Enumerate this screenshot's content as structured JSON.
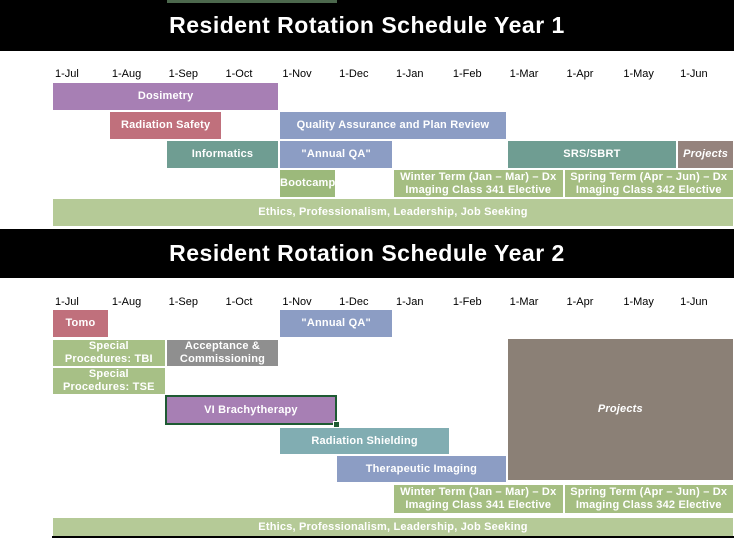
{
  "page_background": "#FFFFFF",
  "header_bar_color": "#000000",
  "header_text_color": "#FFFFFF",
  "top_edge_artifact_color": "#4C684D",
  "chart_data": [
    {
      "type": "bar",
      "subtype": "gantt",
      "title": "Resident Rotation Schedule Year 1",
      "x_ticks": [
        "1-Jul",
        "1-Aug",
        "1-Sep",
        "1-Oct",
        "1-Nov",
        "1-Dec",
        "1-Jan",
        "1-Feb",
        "1-Mar",
        "1-Apr",
        "1-May",
        "1-Jun"
      ],
      "tasks": [
        {
          "id": "dosimetry",
          "label": "Dosimetry",
          "start_month": "1-Jul",
          "end_month": "1-Nov",
          "start": 0,
          "end": 4,
          "row": 0,
          "color": "#A77FB4"
        },
        {
          "id": "radiation-safety",
          "label": "Radiation Safety",
          "start_month": "1-Aug",
          "end_month": "1-Oct",
          "start": 1,
          "end": 3,
          "row": 1,
          "color": "#C0707C"
        },
        {
          "id": "qa-plan-review",
          "label": "Quality Assurance and Plan Review",
          "start_month": "1-Nov",
          "end_month": "1-Mar",
          "start": 4,
          "end": 8,
          "row": 1,
          "color": "#8C9DC4"
        },
        {
          "id": "informatics",
          "label": "Informatics",
          "start_month": "1-Sep",
          "end_month": "1-Nov",
          "start": 2,
          "end": 4,
          "row": 2,
          "color": "#6F9D92"
        },
        {
          "id": "annual-qa-y1",
          "label": "\"Annual QA\"",
          "start_month": "1-Nov",
          "end_month": "1-Jan",
          "start": 4,
          "end": 6,
          "row": 2,
          "color": "#8C9DC4"
        },
        {
          "id": "srs-sbrt",
          "label": "SRS/SBRT",
          "start_month": "1-Mar",
          "end_month": "1-Jun",
          "start": 8,
          "end": 11,
          "row": 2,
          "color": "#6F9D92"
        },
        {
          "id": "projects-y1",
          "label": "Projects",
          "start_month": "1-Jun",
          "end_month": "30-Jun",
          "start": 11,
          "end": 12,
          "row": 2,
          "color": "#95837D",
          "italic": true
        },
        {
          "id": "bootcamp",
          "label": "Bootcamp",
          "start_month": "1-Nov",
          "end_month": "1-Dec",
          "start": 4,
          "end": 5,
          "row": 3,
          "color": "#9CB97B"
        },
        {
          "id": "winter-term-y1",
          "label": "Winter Term (Jan – Mar) – Dx Imaging Class 341 Elective",
          "lines": [
            "Winter Term (Jan – Mar) – Dx",
            "Imaging Class 341 Elective"
          ],
          "start_month": "1-Jan",
          "end_month": "1-Apr",
          "start": 6,
          "end": 9,
          "row": 3,
          "color": "#A5BE82"
        },
        {
          "id": "spring-term-y1",
          "label": "Spring Term (Apr – Jun) – Dx Imaging Class 342 Elective",
          "lines": [
            "Spring Term (Apr – Jun) – Dx",
            "Imaging Class 342 Elective"
          ],
          "start_month": "1-Apr",
          "end_month": "30-Jun",
          "start": 9,
          "end": 12,
          "row": 3,
          "color": "#A5BE82"
        },
        {
          "id": "ethics-y1",
          "label": "Ethics, Professionalism, Leadership, Job Seeking",
          "start_month": "1-Jul",
          "end_month": "30-Jun",
          "start": 0,
          "end": 12,
          "row": 4,
          "color": "#B5CA97"
        }
      ]
    },
    {
      "type": "bar",
      "subtype": "gantt",
      "title": "Resident Rotation Schedule Year 2",
      "x_ticks": [
        "1-Jul",
        "1-Aug",
        "1-Sep",
        "1-Oct",
        "1-Nov",
        "1-Dec",
        "1-Jan",
        "1-Feb",
        "1-Mar",
        "1-Apr",
        "1-May",
        "1-Jun"
      ],
      "tasks": [
        {
          "id": "tomo",
          "label": "Tomo",
          "start_month": "1-Jul",
          "end_month": "1-Aug",
          "start": 0,
          "end": 1,
          "row": 0,
          "color": "#C0707C"
        },
        {
          "id": "annual-qa-y2",
          "label": "\"Annual QA\"",
          "start_month": "1-Nov",
          "end_month": "1-Jan",
          "start": 4,
          "end": 6,
          "row": 0,
          "color": "#8C9DC4"
        },
        {
          "id": "special-procedures-tbi",
          "label": "Special Procedures: TBI",
          "lines": [
            "Special",
            "Procedures: TBI"
          ],
          "start_month": "1-Jul",
          "end_month": "1-Sep",
          "start": 0,
          "end": 2,
          "row": 1,
          "color": "#A7C086"
        },
        {
          "id": "acceptance-commissioning",
          "label": "Acceptance & Commissioning",
          "lines": [
            "Acceptance &",
            "Commissioning"
          ],
          "start_month": "1-Sep",
          "end_month": "1-Nov",
          "start": 2,
          "end": 4,
          "row": 1,
          "color": "#8F8F8F"
        },
        {
          "id": "special-procedures-tse",
          "label": "Special Procedures: TSE",
          "lines": [
            "Special",
            "Procedures: TSE"
          ],
          "start_month": "1-Jul",
          "end_month": "1-Sep",
          "start": 0,
          "end": 2,
          "row": 2,
          "color": "#A7C086"
        },
        {
          "id": "vi-brachytherapy",
          "label": "VI Brachytherapy",
          "start_month": "1-Sep",
          "end_month": "1-Dec",
          "start": 2,
          "end": 5,
          "row": 3,
          "color": "#A77FB4",
          "selected": true,
          "selection_border_color": "#1E5B33"
        },
        {
          "id": "radiation-shielding",
          "label": "Radiation Shielding",
          "start_month": "1-Nov",
          "end_month": "1-Feb",
          "start": 4,
          "end": 7,
          "row": 4,
          "color": "#81ADB2"
        },
        {
          "id": "therapeutic-imaging",
          "label": "Therapeutic Imaging",
          "start_month": "1-Dec",
          "end_month": "1-Mar",
          "start": 5,
          "end": 8,
          "row": 5,
          "color": "#8C9DC4"
        },
        {
          "id": "projects-y2",
          "label": "Projects",
          "start_month": "1-Mar",
          "end_month": "30-Jun",
          "start": 8,
          "end": 12,
          "row": "block",
          "color": "#8B8076",
          "italic": true
        },
        {
          "id": "winter-term-y2",
          "label": "Winter Term (Jan – Mar) – Dx Imaging Class 341 Elective",
          "lines": [
            "Winter Term (Jan – Mar) – Dx",
            "Imaging Class 341 Elective"
          ],
          "start_month": "1-Jan",
          "end_month": "1-Apr",
          "start": 6,
          "end": 9,
          "row": 6,
          "color": "#A5BE82"
        },
        {
          "id": "spring-term-y2",
          "label": "Spring Term (Apr – Jun) – Dx Imaging Class 342 Elective",
          "lines": [
            "Spring Term (Apr – Jun) – Dx",
            "Imaging Class 342 Elective"
          ],
          "start_month": "1-Apr",
          "end_month": "30-Jun",
          "start": 9,
          "end": 12,
          "row": 6,
          "color": "#A5BE82"
        },
        {
          "id": "ethics-y2",
          "label": "Ethics, Professionalism, Leadership, Job Seeking",
          "start_month": "1-Jul",
          "end_month": "30-Jun",
          "start": 0,
          "end": 12,
          "row": 7,
          "color": "#B5CA97"
        }
      ]
    }
  ]
}
